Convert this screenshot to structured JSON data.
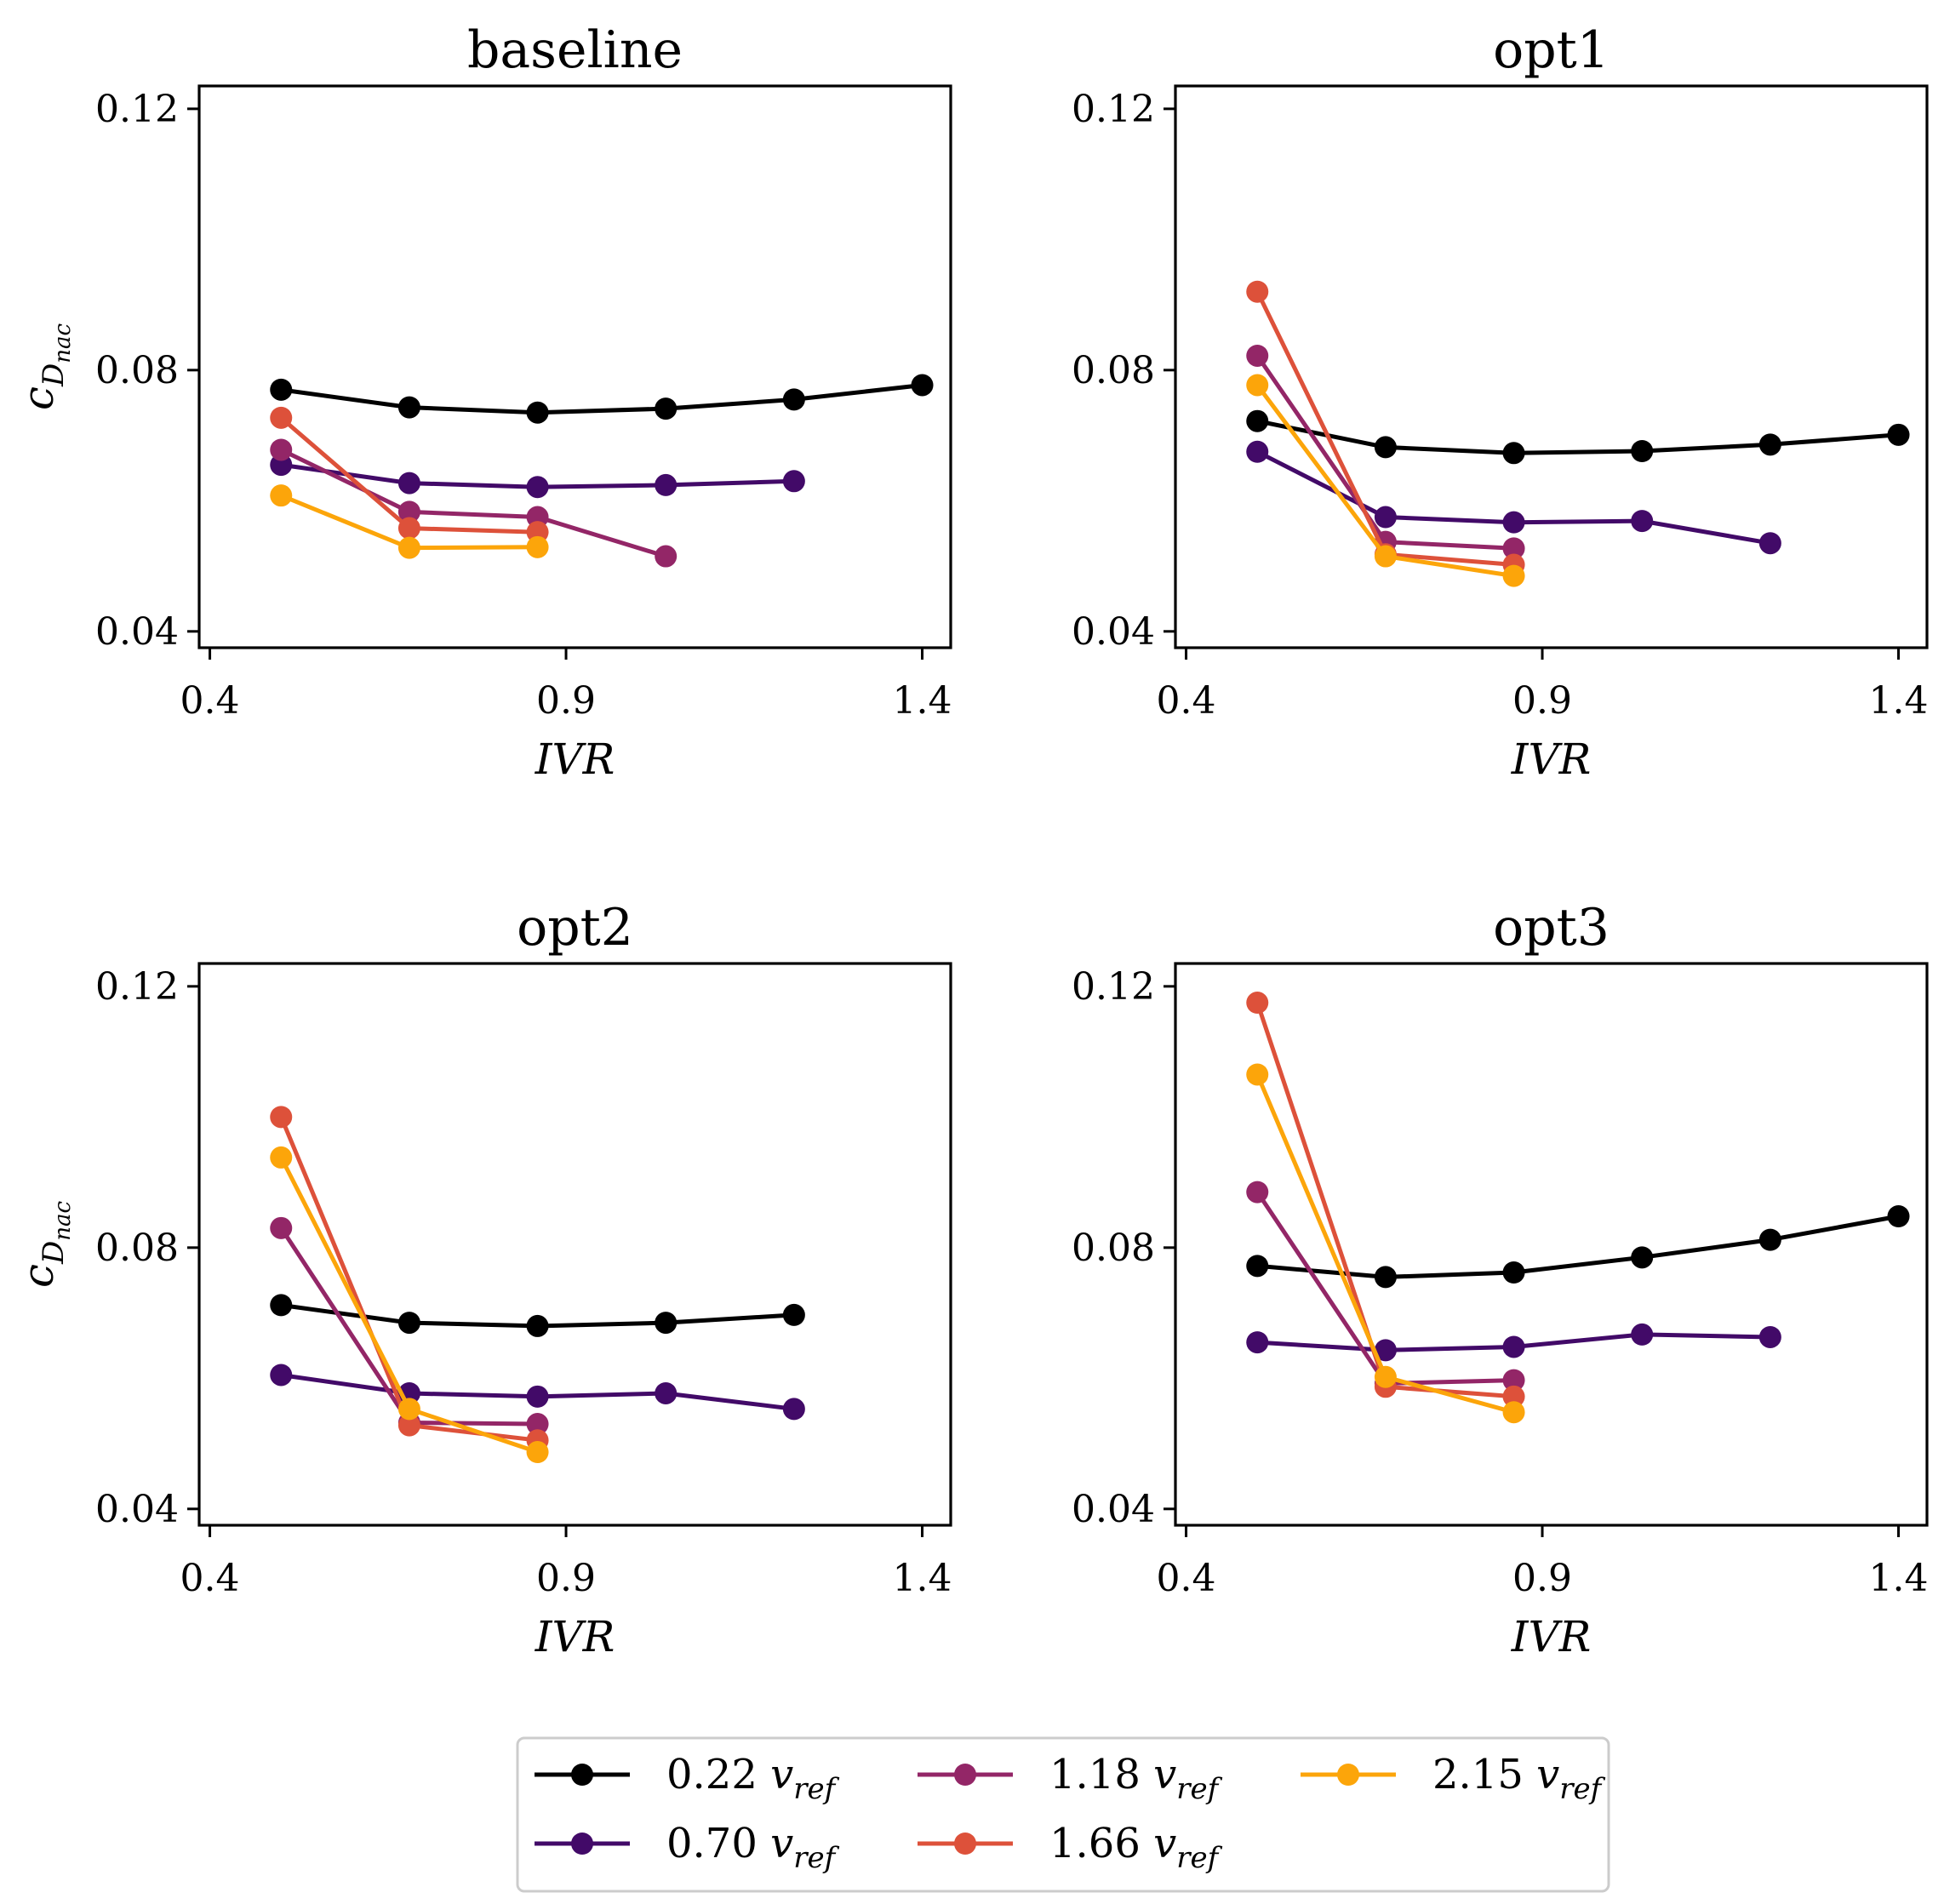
{
  "chart_data": [
    {
      "type": "line",
      "title": "baseline",
      "xlabel": "IVR",
      "ylabel_base": "c",
      "ylabel_sub": "D",
      "ylabel_subsub": "nac",
      "xlim": [
        0.385,
        1.44
      ],
      "ylim": [
        0.0375,
        0.1235
      ],
      "xticks": [
        0.4,
        0.9,
        1.4
      ],
      "xtick_labels": [
        "0.4",
        "0.9",
        "1.4"
      ],
      "yticks": [
        0.04,
        0.08,
        0.12
      ],
      "ytick_labels": [
        "0.04",
        "0.08",
        "0.12"
      ],
      "series": [
        {
          "name": "0.22 v_ref",
          "x": [
            0.5,
            0.68,
            0.86,
            1.04,
            1.22,
            1.4
          ],
          "values": [
            0.077,
            0.0743,
            0.0735,
            0.0741,
            0.0755,
            0.0777
          ]
        },
        {
          "name": "0.70 v_ref",
          "x": [
            0.5,
            0.68,
            0.86,
            1.04,
            1.22
          ],
          "values": [
            0.0655,
            0.0627,
            0.0621,
            0.0624,
            0.063
          ]
        },
        {
          "name": "1.18 v_ref",
          "x": [
            0.5,
            0.68,
            0.86,
            1.04
          ],
          "values": [
            0.0678,
            0.0583,
            0.0575,
            0.0515
          ]
        },
        {
          "name": "1.66 v_ref",
          "x": [
            0.5,
            0.68,
            0.86
          ],
          "values": [
            0.0727,
            0.0558,
            0.0552
          ]
        },
        {
          "name": "2.15 v_ref",
          "x": [
            0.5,
            0.68,
            0.86
          ],
          "values": [
            0.0608,
            0.0528,
            0.0529
          ]
        }
      ]
    },
    {
      "type": "line",
      "title": "opt1",
      "xlabel": "IVR",
      "ylabel_base": "",
      "ylabel_sub": "",
      "ylabel_subsub": "",
      "xlim": [
        0.385,
        1.44
      ],
      "ylim": [
        0.0375,
        0.1235
      ],
      "xticks": [
        0.4,
        0.9,
        1.4
      ],
      "xtick_labels": [
        "0.4",
        "0.9",
        "1.4"
      ],
      "yticks": [
        0.04,
        0.08,
        0.12
      ],
      "ytick_labels": [
        "0.04",
        "0.08",
        "0.12"
      ],
      "series": [
        {
          "name": "0.22 v_ref",
          "x": [
            0.5,
            0.68,
            0.86,
            1.04,
            1.22,
            1.4
          ],
          "values": [
            0.0722,
            0.0682,
            0.0673,
            0.0676,
            0.0686,
            0.0701
          ]
        },
        {
          "name": "0.70 v_ref",
          "x": [
            0.5,
            0.68,
            0.86,
            1.04,
            1.22
          ],
          "values": [
            0.0675,
            0.0575,
            0.0567,
            0.0569,
            0.0535
          ]
        },
        {
          "name": "1.18 v_ref",
          "x": [
            0.5,
            0.68,
            0.86
          ],
          "values": [
            0.0822,
            0.0537,
            0.0527
          ]
        },
        {
          "name": "1.66 v_ref",
          "x": [
            0.5,
            0.68,
            0.86
          ],
          "values": [
            0.092,
            0.0518,
            0.0502
          ]
        },
        {
          "name": "2.15 v_ref",
          "x": [
            0.5,
            0.68,
            0.86
          ],
          "values": [
            0.0777,
            0.0515,
            0.0485
          ]
        }
      ]
    },
    {
      "type": "line",
      "title": "opt2",
      "xlabel": "IVR",
      "ylabel_base": "c",
      "ylabel_sub": "D",
      "ylabel_subsub": "nac",
      "xlim": [
        0.385,
        1.44
      ],
      "ylim": [
        0.0375,
        0.1235
      ],
      "xticks": [
        0.4,
        0.9,
        1.4
      ],
      "xtick_labels": [
        "0.4",
        "0.9",
        "1.4"
      ],
      "yticks": [
        0.04,
        0.08,
        0.12
      ],
      "ytick_labels": [
        "0.04",
        "0.08",
        "0.12"
      ],
      "series": [
        {
          "name": "0.22 v_ref",
          "x": [
            0.5,
            0.68,
            0.86,
            1.04,
            1.22
          ],
          "values": [
            0.0712,
            0.0685,
            0.068,
            0.0685,
            0.0697
          ]
        },
        {
          "name": "0.70 v_ref",
          "x": [
            0.5,
            0.68,
            0.86,
            1.04,
            1.22
          ],
          "values": [
            0.0605,
            0.0577,
            0.0572,
            0.0577,
            0.0553
          ]
        },
        {
          "name": "1.18 v_ref",
          "x": [
            0.5,
            0.68,
            0.86
          ],
          "values": [
            0.083,
            0.0532,
            0.053
          ]
        },
        {
          "name": "1.66 v_ref",
          "x": [
            0.5,
            0.68,
            0.86
          ],
          "values": [
            0.1,
            0.0528,
            0.0505
          ]
        },
        {
          "name": "2.15 v_ref",
          "x": [
            0.5,
            0.68,
            0.86
          ],
          "values": [
            0.0938,
            0.0553,
            0.0487
          ]
        }
      ]
    },
    {
      "type": "line",
      "title": "opt3",
      "xlabel": "IVR",
      "ylabel_base": "",
      "ylabel_sub": "",
      "ylabel_subsub": "",
      "xlim": [
        0.385,
        1.44
      ],
      "ylim": [
        0.0375,
        0.1235
      ],
      "xticks": [
        0.4,
        0.9,
        1.4
      ],
      "xtick_labels": [
        "0.4",
        "0.9",
        "1.4"
      ],
      "yticks": [
        0.04,
        0.08,
        0.12
      ],
      "ytick_labels": [
        "0.04",
        "0.08",
        "0.12"
      ],
      "series": [
        {
          "name": "0.22 v_ref",
          "x": [
            0.5,
            0.68,
            0.86,
            1.04,
            1.22,
            1.4
          ],
          "values": [
            0.0772,
            0.0755,
            0.0762,
            0.0785,
            0.0812,
            0.0848
          ]
        },
        {
          "name": "0.70 v_ref",
          "x": [
            0.5,
            0.68,
            0.86,
            1.04,
            1.22
          ],
          "values": [
            0.0655,
            0.0643,
            0.0648,
            0.0667,
            0.0663
          ]
        },
        {
          "name": "1.18 v_ref",
          "x": [
            0.5,
            0.68,
            0.86
          ],
          "values": [
            0.0885,
            0.0592,
            0.0597
          ]
        },
        {
          "name": "1.66 v_ref",
          "x": [
            0.5,
            0.68,
            0.86
          ],
          "values": [
            0.1175,
            0.0587,
            0.0572
          ]
        },
        {
          "name": "2.15 v_ref",
          "x": [
            0.5,
            0.68,
            0.86
          ],
          "values": [
            0.1065,
            0.0602,
            0.0548
          ]
        }
      ]
    }
  ],
  "series_colors": [
    "#000000",
    "#420a68",
    "#932667",
    "#dd513a",
    "#fca50a"
  ],
  "legend": {
    "placement": "bottom-center",
    "entries": [
      {
        "value": "0.22",
        "var": "v",
        "sub": "ref"
      },
      {
        "value": "0.70",
        "var": "v",
        "sub": "ref"
      },
      {
        "value": "1.18",
        "var": "v",
        "sub": "ref"
      },
      {
        "value": "1.66",
        "var": "v",
        "sub": "ref"
      },
      {
        "value": "2.15",
        "var": "v",
        "sub": "ref"
      }
    ]
  }
}
